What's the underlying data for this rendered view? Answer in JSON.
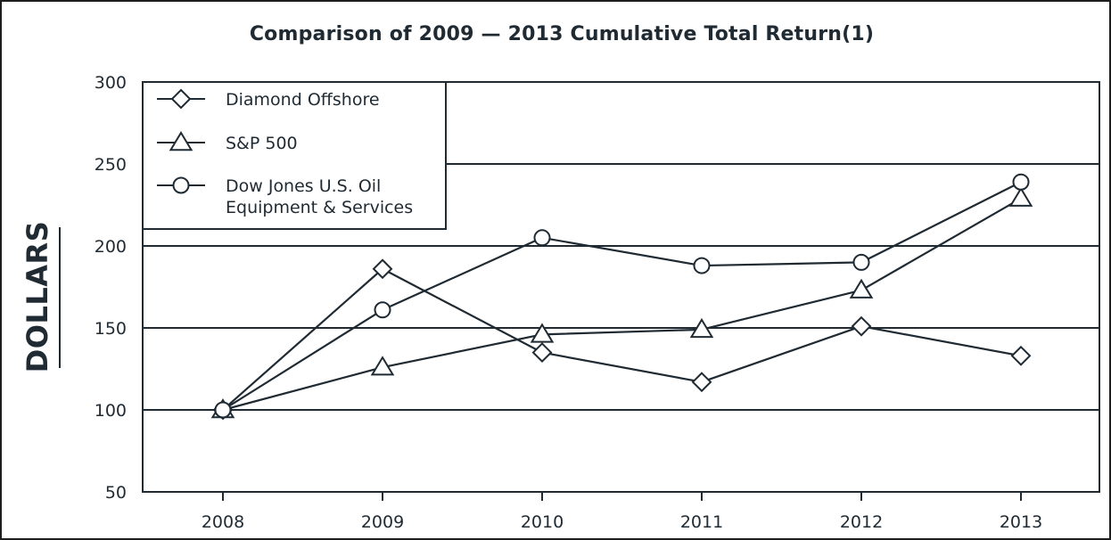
{
  "chart_data": {
    "type": "line",
    "title": "Comparison of 2009 — 2013 Cumulative Total Return(1)",
    "xlabel": "",
    "ylabel": "DOLLARS",
    "categories": [
      "2008",
      "2009",
      "2010",
      "2011",
      "2012",
      "2013"
    ],
    "ylim": [
      50,
      300
    ],
    "yticks": [
      300,
      250,
      200,
      150,
      100,
      50
    ],
    "grid": true,
    "legend_position": "top-left",
    "series": [
      {
        "name": "Diamond Offshore",
        "marker": "diamond",
        "values": [
          100,
          186,
          135,
          117,
          151,
          133
        ]
      },
      {
        "name": "S&P 500",
        "marker": "triangle",
        "values": [
          100,
          126,
          146,
          149,
          173,
          229
        ]
      },
      {
        "name": "Dow Jones U.S. Oil Equipment & Services",
        "name_lines": [
          "Dow Jones U.S. Oil",
          "Equipment & Services"
        ],
        "marker": "circle",
        "values": [
          100,
          161,
          205,
          188,
          190,
          239
        ]
      }
    ],
    "colors": {
      "line": "#1f2a33",
      "grid": "#1f2a33",
      "background": "#ffffff"
    }
  }
}
